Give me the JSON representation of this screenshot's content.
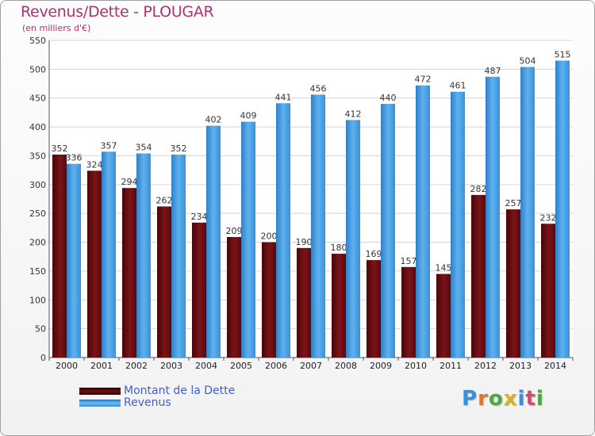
{
  "colors": {
    "dette": "#6e0c10",
    "revenus": "#3a8fd8",
    "title": "#b0306a",
    "legend_text": "#3f5fd0"
  },
  "chart_data": {
    "type": "bar",
    "title": "Revenus/Dette - PLOUGAR",
    "subtitle": "(en milliers d'€)",
    "xlabel": "",
    "ylabel": "",
    "ylim": [
      0,
      550
    ],
    "yticks": [
      0,
      50,
      100,
      150,
      200,
      250,
      300,
      350,
      400,
      450,
      500,
      550
    ],
    "grid": true,
    "legend_position": "bottom-left",
    "categories": [
      "2000",
      "2001",
      "2002",
      "2003",
      "2004",
      "2005",
      "2006",
      "2007",
      "2008",
      "2009",
      "2010",
      "2011",
      "2012",
      "2013",
      "2014"
    ],
    "series": [
      {
        "name": "Montant de la Dette",
        "values": [
          352,
          324,
          294,
          262,
          234,
          209,
          200,
          190,
          180,
          169,
          157,
          145,
          282,
          257,
          232
        ]
      },
      {
        "name": "Revenus",
        "values": [
          336,
          357,
          354,
          352,
          402,
          409,
          441,
          456,
          412,
          440,
          472,
          461,
          487,
          504,
          515
        ]
      }
    ]
  },
  "logo": {
    "letters": [
      "P",
      "r",
      "o",
      "x",
      "i",
      "t",
      "i"
    ]
  }
}
